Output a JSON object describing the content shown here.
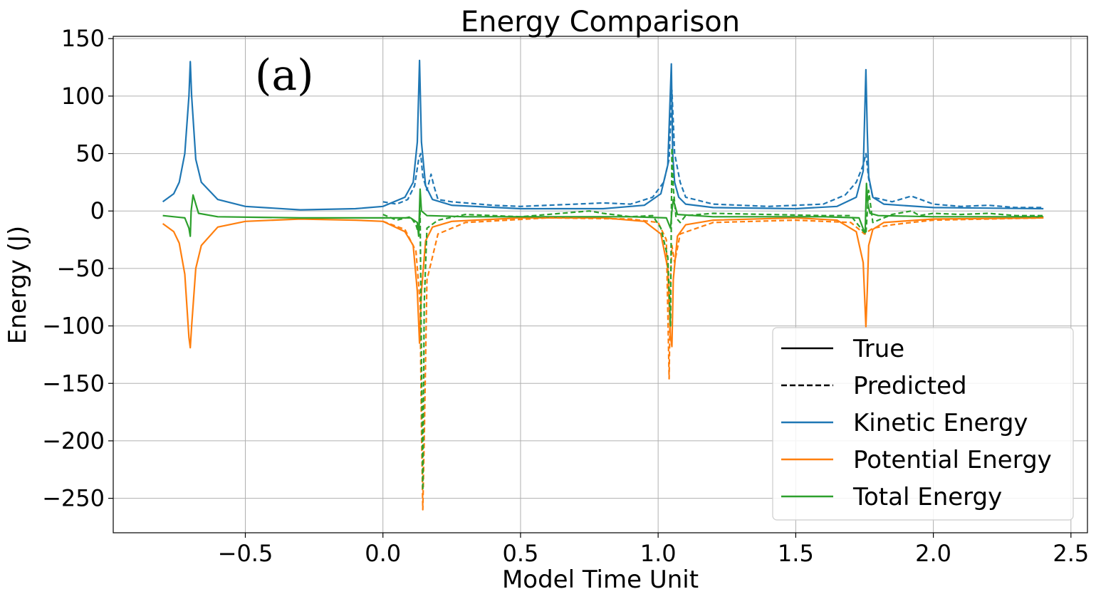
{
  "chart_data": {
    "type": "line",
    "title": "Energy Comparison",
    "xlabel": "Model Time Unit",
    "ylabel": "Energy (J)",
    "annotation": "(a)",
    "xlim": [
      -0.98,
      2.56
    ],
    "ylim": [
      -280,
      152
    ],
    "xticks": [
      -0.5,
      0.0,
      0.5,
      1.0,
      1.5,
      2.0,
      2.5
    ],
    "xtick_labels": [
      "−0.5",
      "0.0",
      "0.5",
      "1.0",
      "1.5",
      "2.0",
      "2.5"
    ],
    "yticks": [
      150,
      100,
      50,
      0,
      -50,
      -100,
      -150,
      -200,
      -250
    ],
    "ytick_labels": [
      "150",
      "100",
      "50",
      "0",
      "−50",
      "−100",
      "−150",
      "−200",
      "−250"
    ],
    "grid": true,
    "legend_position": "lower-right",
    "legend": [
      {
        "label": "True",
        "color": "#000000",
        "style": "solid"
      },
      {
        "label": "Predicted",
        "color": "#000000",
        "style": "dashed"
      },
      {
        "label": "Kinetic Energy",
        "color": "#1f77b4",
        "style": "solid"
      },
      {
        "label": "Potential Energy",
        "color": "#ff7f0e",
        "style": "solid"
      },
      {
        "label": "Total Energy",
        "color": "#2ca02c",
        "style": "solid"
      }
    ],
    "series": [
      {
        "name": "Kinetic Energy",
        "style": "solid",
        "color": "#1f77b4",
        "x": [
          -0.8,
          -0.76,
          -0.74,
          -0.72,
          -0.705,
          -0.7,
          -0.695,
          -0.68,
          -0.66,
          -0.6,
          -0.5,
          -0.3,
          -0.1,
          0.0,
          0.08,
          0.11,
          0.125,
          0.133,
          0.14,
          0.155,
          0.18,
          0.25,
          0.5,
          0.8,
          0.95,
          1.01,
          1.035,
          1.048,
          1.053,
          1.06,
          1.075,
          1.1,
          1.2,
          1.5,
          1.65,
          1.72,
          1.745,
          1.755,
          1.76,
          1.765,
          1.78,
          1.82,
          2.0,
          2.4
        ],
        "y": [
          8,
          15,
          25,
          50,
          100,
          130,
          100,
          45,
          25,
          10,
          4,
          1,
          2,
          4,
          12,
          25,
          60,
          131,
          60,
          22,
          10,
          5,
          2,
          2,
          5,
          15,
          40,
          128,
          50,
          25,
          12,
          6,
          3,
          2,
          4,
          12,
          35,
          123,
          70,
          30,
          12,
          6,
          3,
          2
        ]
      },
      {
        "name": "Potential Energy",
        "style": "solid",
        "color": "#ff7f0e",
        "x": [
          -0.8,
          -0.76,
          -0.74,
          -0.72,
          -0.705,
          -0.7,
          -0.695,
          -0.68,
          -0.66,
          -0.6,
          -0.5,
          -0.3,
          -0.1,
          0.0,
          0.08,
          0.11,
          0.125,
          0.133,
          0.14,
          0.155,
          0.18,
          0.25,
          0.5,
          0.8,
          0.95,
          1.01,
          1.035,
          1.045,
          1.05,
          1.055,
          1.07,
          1.1,
          1.2,
          1.5,
          1.65,
          1.72,
          1.745,
          1.755,
          1.76,
          1.765,
          1.78,
          1.82,
          2.0,
          2.4
        ],
        "y": [
          -11,
          -18,
          -28,
          -55,
          -110,
          -119,
          -100,
          -50,
          -30,
          -14,
          -9,
          -7,
          -8,
          -9,
          -18,
          -30,
          -70,
          -115,
          -70,
          -26,
          -14,
          -9,
          -6,
          -6,
          -9,
          -20,
          -50,
          -110,
          -118,
          -60,
          -22,
          -12,
          -8,
          -6,
          -8,
          -18,
          -45,
          -101,
          -70,
          -30,
          -16,
          -10,
          -7,
          -6
        ]
      },
      {
        "name": "Total Energy",
        "style": "solid",
        "color": "#2ca02c",
        "x": [
          -0.8,
          -0.72,
          -0.705,
          -0.7,
          -0.697,
          -0.69,
          -0.67,
          -0.6,
          -0.3,
          0.0,
          0.1,
          0.125,
          0.13,
          0.135,
          0.14,
          0.16,
          0.3,
          0.9,
          1.03,
          1.045,
          1.05,
          1.055,
          1.07,
          1.2,
          1.6,
          1.73,
          1.752,
          1.757,
          1.762,
          1.77,
          1.8,
          2.0,
          2.4
        ],
        "y": [
          -4,
          -6,
          -15,
          -22,
          0,
          14,
          -2,
          -5,
          -6,
          -6,
          -6,
          -10,
          -22,
          19,
          0,
          -4,
          -5,
          -5,
          -6,
          -15,
          0,
          10,
          -3,
          -5,
          -5,
          -6,
          -20,
          24,
          6,
          -2,
          -4,
          -5,
          -5
        ]
      },
      {
        "name": "Kinetic Energy (Predicted)",
        "style": "dashed",
        "color": "#1f77b4",
        "x": [
          0.0,
          0.05,
          0.09,
          0.115,
          0.13,
          0.137,
          0.145,
          0.16,
          0.175,
          0.185,
          0.2,
          0.25,
          0.3,
          0.4,
          0.5,
          0.6,
          0.7,
          0.8,
          0.9,
          0.98,
          1.02,
          1.04,
          1.05,
          1.06,
          1.08,
          1.1,
          1.2,
          1.3,
          1.4,
          1.5,
          1.6,
          1.68,
          1.72,
          1.745,
          1.755,
          1.765,
          1.78,
          1.85,
          1.92,
          2.0,
          2.1,
          2.2,
          2.3,
          2.4
        ],
        "y": [
          8,
          6,
          10,
          22,
          45,
          50,
          30,
          18,
          32,
          22,
          10,
          8,
          7,
          5,
          4,
          5,
          6,
          7,
          6,
          12,
          25,
          45,
          105,
          50,
          25,
          12,
          6,
          5,
          4,
          5,
          6,
          14,
          25,
          40,
          50,
          28,
          12,
          8,
          13,
          6,
          4,
          5,
          3,
          3
        ]
      },
      {
        "name": "Potential Energy (Predicted)",
        "style": "dashed",
        "color": "#ff7f0e",
        "x": [
          0.0,
          0.08,
          0.12,
          0.135,
          0.14,
          0.145,
          0.15,
          0.16,
          0.2,
          0.3,
          0.6,
          0.9,
          1.0,
          1.03,
          1.04,
          1.045,
          1.05,
          1.06,
          1.08,
          1.2,
          1.5,
          1.7,
          1.75,
          1.78,
          1.85,
          1.92,
          2.0,
          2.4
        ],
        "y": [
          -9,
          -16,
          -35,
          -80,
          -190,
          -260,
          -200,
          -60,
          -20,
          -10,
          -6,
          -7,
          -10,
          -25,
          -146,
          -60,
          -30,
          -45,
          -20,
          -10,
          -8,
          -10,
          -20,
          -15,
          -12,
          -10,
          -8,
          -6
        ]
      },
      {
        "name": "Total Energy (Predicted)",
        "style": "dashed",
        "color": "#2ca02c",
        "x": [
          0.0,
          0.05,
          0.1,
          0.12,
          0.13,
          0.135,
          0.14,
          0.145,
          0.15,
          0.16,
          0.2,
          0.3,
          0.5,
          0.75,
          0.8,
          0.9,
          0.98,
          1.01,
          1.035,
          1.045,
          1.05,
          1.055,
          1.065,
          1.08,
          1.1,
          1.2,
          1.4,
          1.6,
          1.7,
          1.74,
          1.755,
          1.765,
          1.78,
          1.85,
          1.92,
          1.95,
          2.0,
          2.1,
          2.2,
          2.3,
          2.4
        ],
        "y": [
          -3,
          -8,
          -5,
          -12,
          -20,
          0,
          -130,
          -243,
          -80,
          -15,
          -8,
          -3,
          -5,
          0,
          -2,
          -5,
          -4,
          -15,
          -40,
          -100,
          55,
          20,
          -6,
          -10,
          -4,
          -2,
          -3,
          -4,
          -4,
          -16,
          -20,
          18,
          -10,
          -3,
          0,
          -4,
          -2,
          -3,
          -2,
          -4,
          -4
        ]
      }
    ]
  }
}
